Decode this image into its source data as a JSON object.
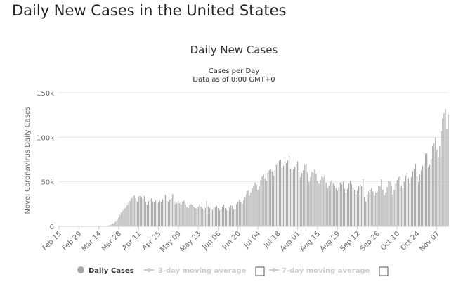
{
  "page_title": "Daily New Cases in the United States",
  "colors": {
    "bar": "#aaaaaa",
    "grid": "#e6e6e6",
    "legend_active": "#333333",
    "legend_inactive": "#cccccc"
  },
  "chart_data": {
    "type": "bar",
    "title": "Daily New Cases",
    "subtitle_lines": [
      "Cases per Day",
      "Data as of 0:00 GMT+0"
    ],
    "ylabel": "Novel Coronavirus Daily Cases",
    "xlabel": "",
    "ylim": [
      0,
      150000
    ],
    "grid": true,
    "y_ticks": [
      {
        "value": 0,
        "label": "0"
      },
      {
        "value": 50000,
        "label": "50k"
      },
      {
        "value": 100000,
        "label": "100k"
      },
      {
        "value": 150000,
        "label": "150k"
      }
    ],
    "x_ticks": [
      {
        "index": 0,
        "label": "Feb 15"
      },
      {
        "index": 14,
        "label": "Feb 29"
      },
      {
        "index": 28,
        "label": "Mar 14"
      },
      {
        "index": 42,
        "label": "Mar 28"
      },
      {
        "index": 56,
        "label": "Apr 11"
      },
      {
        "index": 70,
        "label": "Apr 25"
      },
      {
        "index": 84,
        "label": "May 09"
      },
      {
        "index": 98,
        "label": "May 23"
      },
      {
        "index": 112,
        "label": "Jun 06"
      },
      {
        "index": 126,
        "label": "Jun 20"
      },
      {
        "index": 140,
        "label": "Jul 04"
      },
      {
        "index": 154,
        "label": "Jul 18"
      },
      {
        "index": 168,
        "label": "Aug 01"
      },
      {
        "index": 182,
        "label": "Aug 15"
      },
      {
        "index": 196,
        "label": "Aug 29"
      },
      {
        "index": 210,
        "label": "Sep 12"
      },
      {
        "index": 224,
        "label": "Sep 26"
      },
      {
        "index": 238,
        "label": "Oct 10"
      },
      {
        "index": 252,
        "label": "Oct 24"
      },
      {
        "index": 266,
        "label": "Nov 07"
      }
    ],
    "legend_position": "bottom",
    "series": [
      {
        "name": "Daily Cases",
        "start_date": "Feb 15",
        "values": [
          0,
          0,
          0,
          0,
          0,
          0,
          0,
          0,
          0,
          0,
          0,
          0,
          0,
          0,
          0,
          0,
          0,
          0,
          0,
          0,
          0,
          0,
          0,
          0,
          0,
          0,
          10,
          50,
          60,
          100,
          150,
          250,
          350,
          500,
          700,
          1000,
          1500,
          2200,
          3200,
          4500,
          5500,
          7500,
          10000,
          13000,
          16000,
          18000,
          20000,
          21000,
          24000,
          26500,
          28500,
          31500,
          33500,
          34500,
          32000,
          28000,
          33500,
          34000,
          33000,
          31000,
          34000,
          27500,
          24500,
          28500,
          30000,
          31500,
          27500,
          27000,
          29000,
          30500,
          26500,
          28500,
          27000,
          30500,
          36000,
          35000,
          28500,
          27500,
          30000,
          32000,
          36000,
          28000,
          25000,
          26000,
          28000,
          26000,
          24500,
          28000,
          29000,
          24500,
          21500,
          20500,
          24000,
          25000,
          24000,
          21500,
          20500,
          20000,
          22000,
          25000,
          22000,
          20000,
          18500,
          21000,
          28000,
          22500,
          21000,
          19500,
          18500,
          20500,
          21500,
          23000,
          20500,
          18000,
          19000,
          22000,
          24500,
          20500,
          18500,
          17500,
          21500,
          23500,
          23000,
          19000,
          19500,
          25000,
          27500,
          30000,
          27000,
          25500,
          29000,
          33000,
          36000,
          40000,
          34000,
          38000,
          43000,
          46000,
          49000,
          47000,
          41000,
          45000,
          52000,
          56000,
          58000,
          54000,
          51000,
          60000,
          63000,
          64000,
          62000,
          57000,
          63000,
          69000,
          71000,
          74000,
          75000,
          66000,
          68000,
          73000,
          71000,
          74000,
          79000,
          65000,
          60000,
          64000,
          67000,
          70000,
          73000,
          61000,
          55000,
          60000,
          63000,
          69000,
          70000,
          61000,
          50000,
          55000,
          61000,
          60000,
          64000,
          59000,
          51000,
          48000,
          52000,
          56000,
          55000,
          58000,
          49000,
          43000,
          46000,
          50000,
          52000,
          48000,
          46000,
          43000,
          40000,
          44000,
          49000,
          47000,
          50000,
          42000,
          38000,
          42000,
          48000,
          51000,
          47000,
          44000,
          41000,
          36000,
          40000,
          45000,
          47000,
          45000,
          53000,
          33000,
          28000,
          36000,
          39000,
          41000,
          43000,
          39000,
          34000,
          38000,
          39000,
          46000,
          45000,
          53000,
          41000,
          35000,
          38000,
          44000,
          51000,
          50000,
          46000,
          36000,
          41000,
          48000,
          52000,
          55000,
          56000,
          46000,
          43000,
          50000,
          57000,
          60000,
          54000,
          48000,
          55000,
          62000,
          65000,
          70000,
          56000,
          50000,
          58000,
          63000,
          68000,
          71000,
          82000,
          82000,
          66000,
          69000,
          76000,
          90000,
          93000,
          100000,
          86000,
          77000,
          90000,
          107000,
          121000,
          127000,
          132000,
          109000,
          126000
        ]
      }
    ]
  },
  "legend": [
    {
      "label": "Daily Cases",
      "active": true
    },
    {
      "label": "3-day moving average",
      "active": false
    },
    {
      "label": "7-day moving average",
      "active": false
    }
  ]
}
